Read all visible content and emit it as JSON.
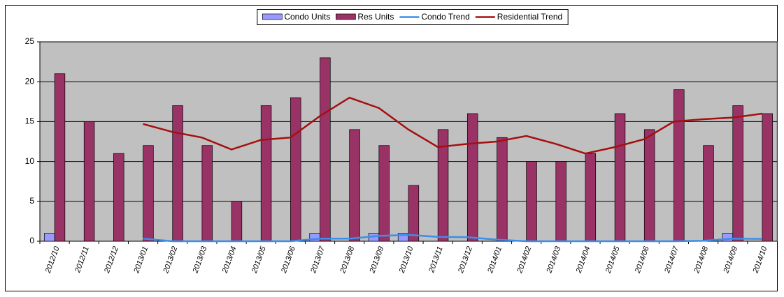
{
  "chart_data": {
    "type": "bar-line",
    "categories": [
      "2012/10",
      "2012/11",
      "2012/12",
      "2013/01",
      "2013/02",
      "2013/03",
      "2013/04",
      "2013/05",
      "2013/06",
      "2013/07",
      "2013/08",
      "2013/09",
      "2013/10",
      "2013/11",
      "2013/12",
      "2014/01",
      "2014/02",
      "2014/03",
      "2014/04",
      "2014/05",
      "2014/06",
      "2014/07",
      "2014/08",
      "2014/09",
      "2014/10"
    ],
    "series": [
      {
        "name": "Condo Units",
        "kind": "bar",
        "color": "#9999ff",
        "values": [
          1,
          0,
          0,
          0,
          0,
          0,
          0,
          0,
          0,
          1,
          0,
          1,
          1,
          0,
          0,
          0,
          0,
          0,
          0,
          0,
          0,
          0,
          0,
          1,
          0
        ]
      },
      {
        "name": "Res Units",
        "kind": "bar",
        "color": "#993366",
        "values": [
          21,
          15,
          11,
          12,
          17,
          12,
          5,
          17,
          18,
          23,
          14,
          12,
          7,
          14,
          16,
          13,
          10,
          10,
          11,
          16,
          14,
          19,
          12,
          17,
          16
        ]
      },
      {
        "name": "Condo Trend",
        "kind": "line",
        "color": "#3b8eea",
        "values": [
          null,
          null,
          null,
          0.33,
          0,
          0,
          0,
          0,
          0,
          0.33,
          0.33,
          0.67,
          0.8,
          0.55,
          0.5,
          0.2,
          0,
          0,
          0,
          0,
          0,
          0,
          0.05,
          0.33,
          0.3
        ]
      },
      {
        "name": "Residential Trend",
        "kind": "line",
        "color": "#a50f0f",
        "values": [
          null,
          null,
          null,
          14.7,
          13.7,
          13,
          11.5,
          12.7,
          13,
          15.7,
          18,
          16.7,
          14,
          11.8,
          12.2,
          12.5,
          13.2,
          12.2,
          11,
          11.8,
          12.8,
          15,
          15.3,
          15.5,
          16
        ]
      }
    ],
    "ylim": [
      0,
      25
    ],
    "yticks": [
      0,
      5,
      10,
      15,
      20,
      25
    ],
    "grid": true,
    "legend": "top"
  }
}
